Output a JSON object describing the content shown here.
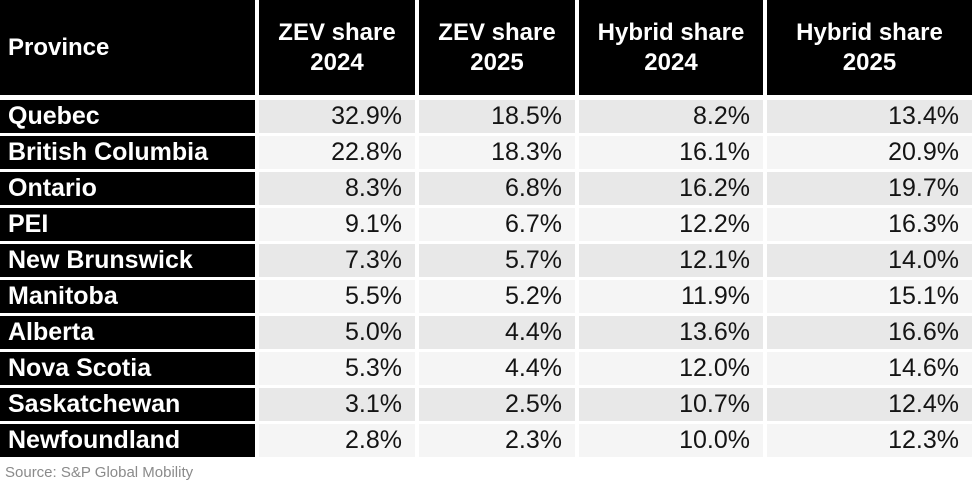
{
  "table": {
    "columns": {
      "province": "Province",
      "zev_2024": "ZEV share\n2024",
      "zev_2025": "ZEV share\n2025",
      "hybrid_2024": "Hybrid share\n2024",
      "hybrid_2025": "Hybrid share\n2025"
    },
    "rows": [
      {
        "province": "Quebec",
        "zev_2024": "32.9%",
        "zev_2025": "18.5%",
        "hybrid_2024": "8.2%",
        "hybrid_2025": "13.4%"
      },
      {
        "province": "British Columbia",
        "zev_2024": "22.8%",
        "zev_2025": "18.3%",
        "hybrid_2024": "16.1%",
        "hybrid_2025": "20.9%"
      },
      {
        "province": "Ontario",
        "zev_2024": "8.3%",
        "zev_2025": "6.8%",
        "hybrid_2024": "16.2%",
        "hybrid_2025": "19.7%"
      },
      {
        "province": "PEI",
        "zev_2024": "9.1%",
        "zev_2025": "6.7%",
        "hybrid_2024": "12.2%",
        "hybrid_2025": "16.3%"
      },
      {
        "province": "New Brunswick",
        "zev_2024": "7.3%",
        "zev_2025": "5.7%",
        "hybrid_2024": "12.1%",
        "hybrid_2025": "14.0%"
      },
      {
        "province": "Manitoba",
        "zev_2024": "5.5%",
        "zev_2025": "5.2%",
        "hybrid_2024": "11.9%",
        "hybrid_2025": "15.1%"
      },
      {
        "province": "Alberta",
        "zev_2024": "5.0%",
        "zev_2025": "4.4%",
        "hybrid_2024": "13.6%",
        "hybrid_2025": "16.6%"
      },
      {
        "province": "Nova Scotia",
        "zev_2024": "5.3%",
        "zev_2025": "4.4%",
        "hybrid_2024": "12.0%",
        "hybrid_2025": "14.6%"
      },
      {
        "province": "Saskatchewan",
        "zev_2024": "3.1%",
        "zev_2025": "2.5%",
        "hybrid_2024": "10.7%",
        "hybrid_2025": "12.4%"
      },
      {
        "province": "Newfoundland",
        "zev_2024": "2.8%",
        "zev_2025": "2.3%",
        "hybrid_2024": "10.0%",
        "hybrid_2025": "12.3%"
      }
    ]
  },
  "source": "Source: S&P Global Mobility",
  "colors": {
    "header_bg": "#000000",
    "header_text": "#ffffff",
    "row_dark_bg": "#e8e8e8",
    "row_light_bg": "#f5f5f5",
    "value_text": "#141414",
    "source_text": "#8a8a8a"
  },
  "chart_data": {
    "type": "table",
    "title": "",
    "columns": [
      "Province",
      "ZEV share 2024",
      "ZEV share 2025",
      "Hybrid share 2024",
      "Hybrid share 2025"
    ],
    "rows": [
      [
        "Quebec",
        32.9,
        18.5,
        8.2,
        13.4
      ],
      [
        "British Columbia",
        22.8,
        18.3,
        16.1,
        20.9
      ],
      [
        "Ontario",
        8.3,
        6.8,
        16.2,
        19.7
      ],
      [
        "PEI",
        9.1,
        6.7,
        12.2,
        16.3
      ],
      [
        "New Brunswick",
        7.3,
        5.7,
        12.1,
        14.0
      ],
      [
        "Manitoba",
        5.5,
        5.2,
        11.9,
        15.1
      ],
      [
        "Alberta",
        5.0,
        4.4,
        13.6,
        16.6
      ],
      [
        "Nova Scotia",
        5.3,
        4.4,
        12.0,
        14.6
      ],
      [
        "Saskatchewan",
        3.1,
        2.5,
        10.7,
        12.4
      ],
      [
        "Newfoundland",
        2.8,
        2.3,
        10.0,
        12.3
      ]
    ],
    "units": "percent",
    "source": "S&P Global Mobility"
  }
}
